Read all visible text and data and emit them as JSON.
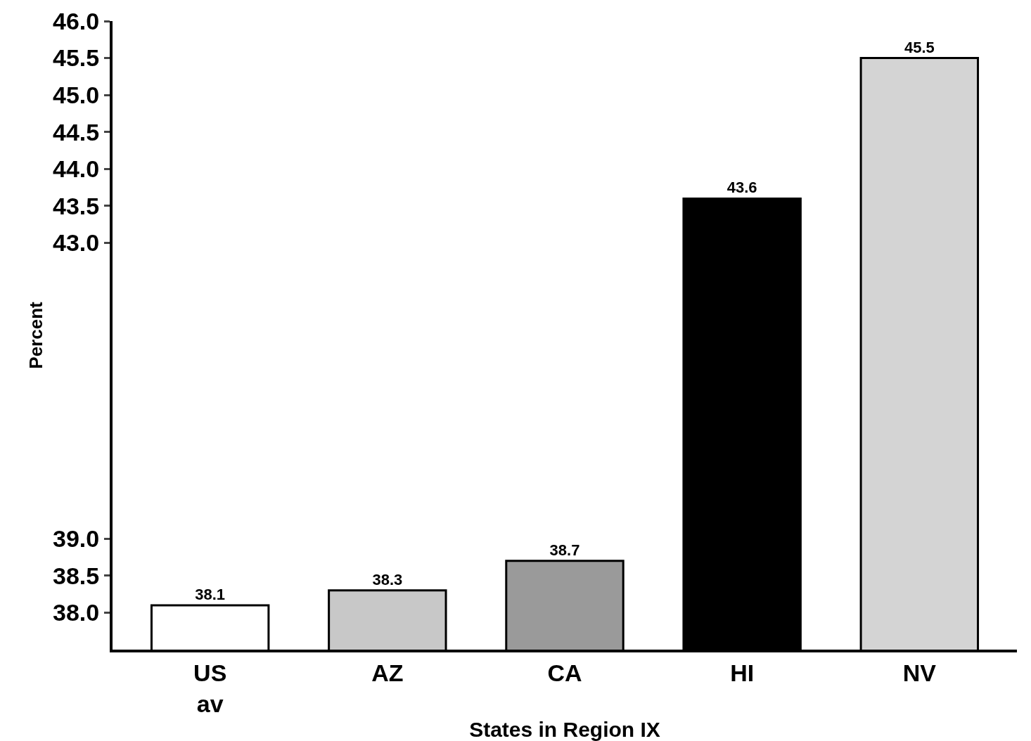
{
  "chart_data": {
    "type": "bar",
    "xlabel": "States in Region IX",
    "ylabel": "Percent",
    "categories": [
      "US\nav",
      "AZ",
      "CA",
      "HI",
      "NV"
    ],
    "values": [
      38.1,
      38.3,
      38.7,
      43.6,
      45.5
    ],
    "colors": [
      "#ffffff",
      "#c8c8c8",
      "#9a9a9a",
      "#000000",
      "#d4d4d4"
    ],
    "ylim": [
      37.5,
      46.0
    ],
    "yticks": [
      {
        "value": 38,
        "label": "38.0"
      },
      38.5,
      {
        "value": 39,
        "label": "39.0"
      },
      {
        "value": 43,
        "label": "43.0"
      },
      43.5,
      {
        "value": 44,
        "label": "44.0"
      },
      44.5,
      {
        "value": 45,
        "label": "45.0"
      },
      45.5,
      {
        "value": 46,
        "label": "46.0"
      }
    ],
    "data_labels": true,
    "grid": false
  }
}
